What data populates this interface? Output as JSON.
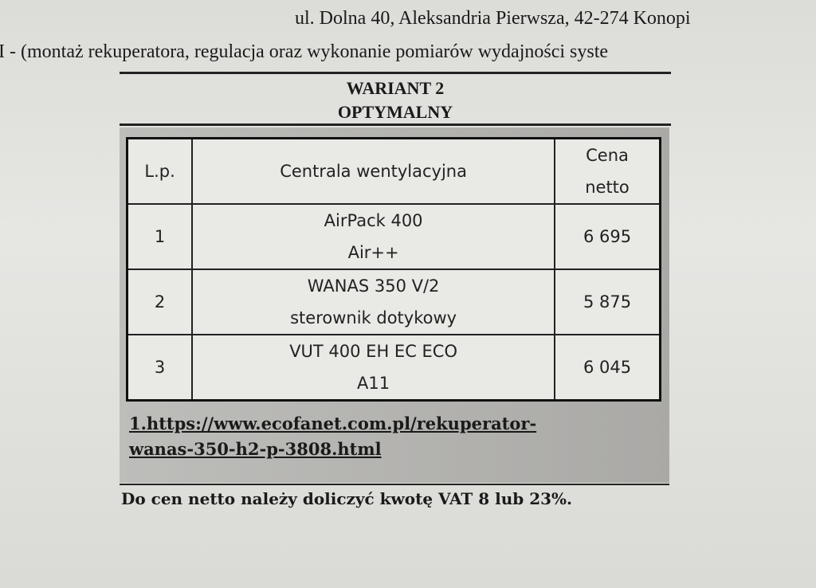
{
  "header": {
    "address": "ul. Dolna 40, Aleksandria Pierwsza, 42-274 Konopi",
    "scope": "I - (montaż rekuperatora, regulacja oraz wykonanie pomiarów wydajności syste"
  },
  "variant": {
    "title": "WARIANT 2",
    "subtitle": "OPTYMALNY"
  },
  "table": {
    "headers": {
      "lp": "L.p.",
      "unit": "Centrala wentylacyjna",
      "price_1": "Cena",
      "price_2": "netto"
    },
    "rows": [
      {
        "lp": "1",
        "name_1": "AirPack 400",
        "name_2": "Air++",
        "price": "6 695"
      },
      {
        "lp": "2",
        "name_1": "WANAS 350 V/2",
        "name_2": "sterownik dotykowy",
        "price": "5 875"
      },
      {
        "lp": "3",
        "name_1": "VUT 400 EH EC ECO",
        "name_2": "A11",
        "price": "6 045"
      }
    ]
  },
  "link": {
    "line1": "1.https://www.ecofanet.com.pl/rekuperator-",
    "line2": "wanas-350-h2-p-3808.html"
  },
  "footer": "Do cen netto należy doliczyć kwotę VAT 8 lub 23%."
}
